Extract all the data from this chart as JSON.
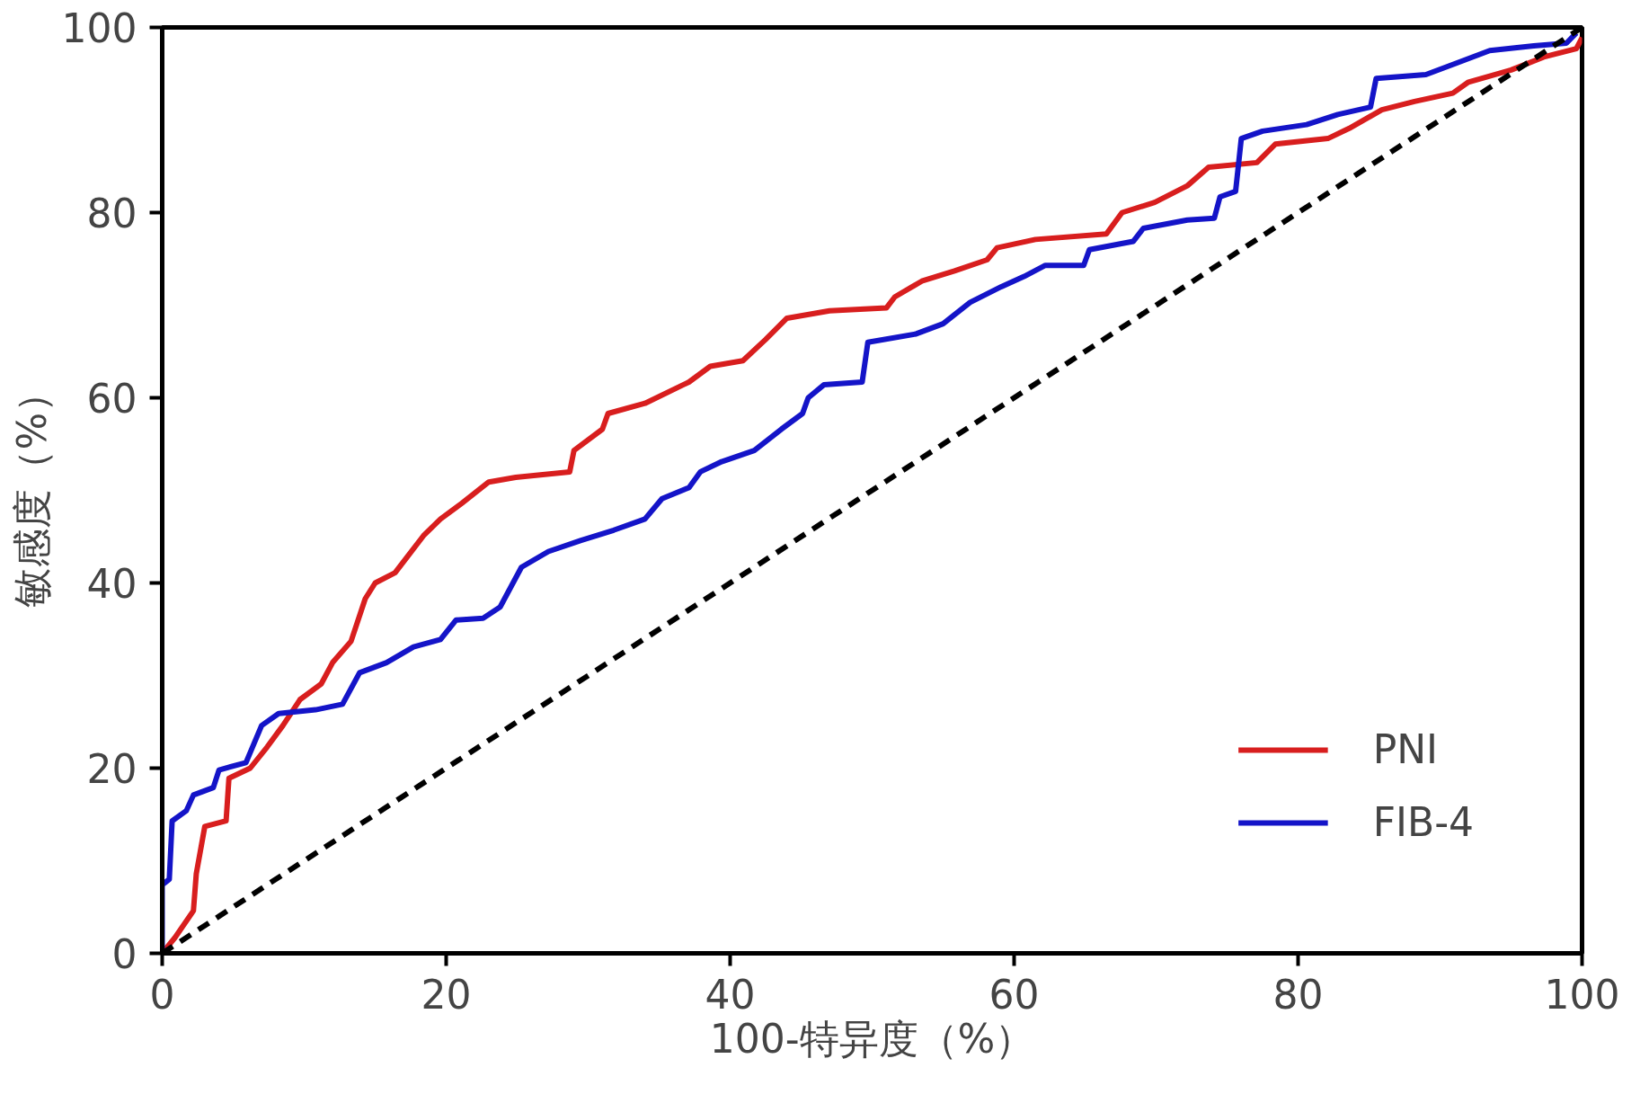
{
  "chart_data": {
    "type": "line",
    "xlabel": "100-特异度（%）",
    "ylabel": "敏感度（%）",
    "xlim": [
      0,
      100
    ],
    "ylim": [
      0,
      100
    ],
    "xticks": [
      0,
      20,
      40,
      60,
      80,
      100
    ],
    "yticks": [
      0,
      20,
      40,
      60,
      80,
      100
    ],
    "grid": false,
    "legend": "bottom right",
    "marker": "none",
    "line_style": "solid",
    "series": [
      {
        "name": "PNI",
        "color": "#d81e1e",
        "x": [
          0,
          0.9,
          2.2,
          2.4,
          3,
          4.5,
          4.7,
          6.2,
          7.4,
          8.5,
          9.7,
          11.2,
          12,
          13.3,
          14.3,
          15,
          16.4,
          17.3,
          18.4,
          19.6,
          21.1,
          23,
          24.9,
          28.7,
          29,
          31,
          31.4,
          34,
          37.1,
          38.6,
          40.9,
          42.5,
          44,
          47,
          51,
          51.6,
          53.5,
          55.8,
          58.1,
          58.8,
          61.5,
          66.5,
          67.6,
          69.9,
          72.2,
          73.7,
          77.1,
          78.4,
          82.1,
          83.6,
          85.9,
          88.2,
          90.9,
          92,
          95,
          97.3,
          99.6,
          100
        ],
        "values": [
          0,
          1.7,
          4.6,
          8.6,
          13.7,
          14.3,
          18.9,
          20,
          22.3,
          24.6,
          27.4,
          29.1,
          31.4,
          33.7,
          38.3,
          40,
          41.1,
          42.9,
          45.1,
          46.9,
          48.6,
          50.9,
          51.4,
          52,
          54.3,
          56.6,
          58.3,
          59.4,
          61.7,
          63.4,
          64,
          66.3,
          68.6,
          69.4,
          69.7,
          70.9,
          72.6,
          73.7,
          74.9,
          76.2,
          77.1,
          77.7,
          80,
          81.1,
          82.9,
          84.9,
          85.4,
          87.4,
          88,
          89.1,
          91.1,
          92,
          92.9,
          94.1,
          95.4,
          96.8,
          97.7,
          98.9
        ]
      },
      {
        "name": "FIB-4",
        "color": "#1414c8",
        "x": [
          0,
          0,
          0.5,
          0.7,
          1.7,
          2.2,
          3.6,
          4,
          5.9,
          7,
          8.2,
          10.8,
          12.7,
          13.9,
          15.8,
          17.7,
          19.6,
          20.7,
          22.6,
          23.8,
          25.3,
          27.2,
          29.5,
          31.8,
          34,
          35.2,
          37.1,
          37.9,
          39.4,
          41.7,
          43.6,
          45.1,
          45.5,
          46.6,
          49.3,
          49.7,
          53.1,
          55,
          56.9,
          59.1,
          60.7,
          62.2,
          64.9,
          65.3,
          68.4,
          69.1,
          72.2,
          74.1,
          74.5,
          75.6,
          76,
          77.5,
          80.6,
          82.8,
          85.1,
          85.5,
          89,
          90.9,
          93.5,
          96.6,
          98.9,
          99.6
        ],
        "values": [
          0,
          7.4,
          8,
          14.3,
          15.4,
          17.1,
          17.9,
          19.8,
          20.6,
          24.6,
          25.9,
          26.3,
          26.9,
          30.3,
          31.4,
          33.1,
          33.9,
          36,
          36.2,
          37.4,
          41.7,
          43.4,
          44.6,
          45.7,
          46.9,
          49.1,
          50.3,
          52,
          53.1,
          54.3,
          56.6,
          58.3,
          60,
          61.4,
          61.7,
          66,
          66.9,
          68,
          70.3,
          72,
          73.1,
          74.3,
          74.3,
          76,
          76.9,
          78.3,
          79.2,
          79.4,
          81.7,
          82.3,
          88,
          88.8,
          89.5,
          90.6,
          91.4,
          94.5,
          94.9,
          96,
          97.5,
          98,
          98.3,
          99.4
        ]
      },
      {
        "color": "#000000",
        "line_style": "dashed",
        "x": [
          0,
          100
        ],
        "values": [
          0,
          100
        ]
      }
    ]
  }
}
